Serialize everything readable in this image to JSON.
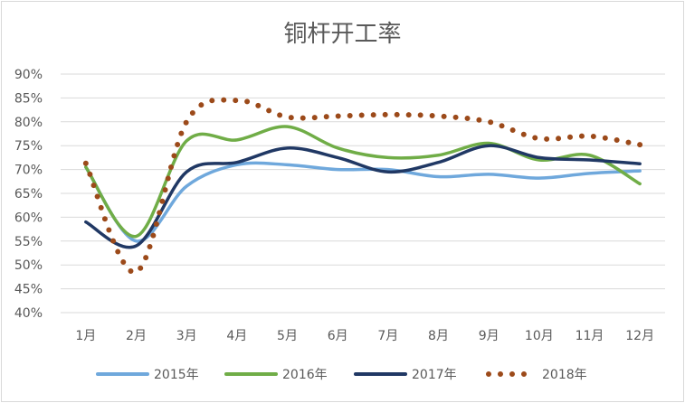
{
  "chart_data": {
    "type": "line",
    "title": "铜杆开工率",
    "xlabel": "",
    "ylabel": "",
    "categories": [
      "1月",
      "2月",
      "3月",
      "4月",
      "5月",
      "6月",
      "7月",
      "8月",
      "9月",
      "10月",
      "11月",
      "12月"
    ],
    "ylim": [
      0.4,
      0.9
    ],
    "y_ticks": [
      "40%",
      "45%",
      "50%",
      "55%",
      "60%",
      "65%",
      "70%",
      "75%",
      "80%",
      "85%",
      "90%"
    ],
    "y_tick_values": [
      0.4,
      0.45,
      0.5,
      0.55,
      0.6,
      0.65,
      0.7,
      0.75,
      0.8,
      0.85,
      0.9
    ],
    "grid": "horizontal",
    "legend_position": "bottom",
    "series": [
      {
        "name": "2015年",
        "color": "#6fa8dc",
        "style": "solid",
        "values": [
          0.705,
          0.55,
          0.665,
          0.71,
          0.71,
          0.7,
          0.7,
          0.685,
          0.69,
          0.682,
          0.692,
          0.697
        ]
      },
      {
        "name": "2016年",
        "color": "#70ad47",
        "style": "solid",
        "values": [
          0.705,
          0.56,
          0.76,
          0.762,
          0.79,
          0.745,
          0.725,
          0.73,
          0.755,
          0.72,
          0.73,
          0.67
        ]
      },
      {
        "name": "2017年",
        "color": "#203864",
        "style": "solid",
        "values": [
          0.59,
          0.54,
          0.695,
          0.715,
          0.745,
          0.725,
          0.695,
          0.715,
          0.75,
          0.725,
          0.72,
          0.712
        ]
      },
      {
        "name": "2018年",
        "color": "#9c4a1a",
        "style": "dotted",
        "values": [
          0.713,
          0.485,
          0.8,
          0.845,
          0.81,
          0.812,
          0.815,
          0.812,
          0.8,
          0.765,
          0.77,
          0.752
        ]
      }
    ]
  }
}
